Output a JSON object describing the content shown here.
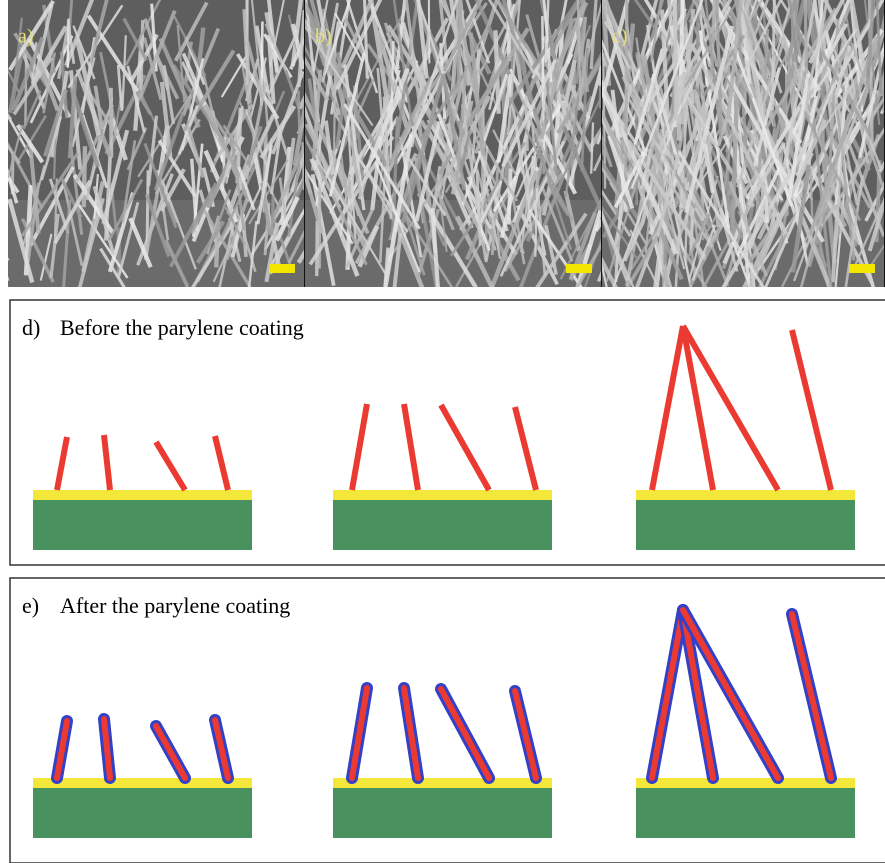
{
  "panels": [
    {
      "label": "a)"
    },
    {
      "label": "b)"
    },
    {
      "label": "c)"
    }
  ],
  "diagrams": [
    {
      "label": "d)",
      "caption": "Before the parylene coating"
    },
    {
      "label": "e)",
      "caption": "After the parylene coating"
    }
  ]
}
